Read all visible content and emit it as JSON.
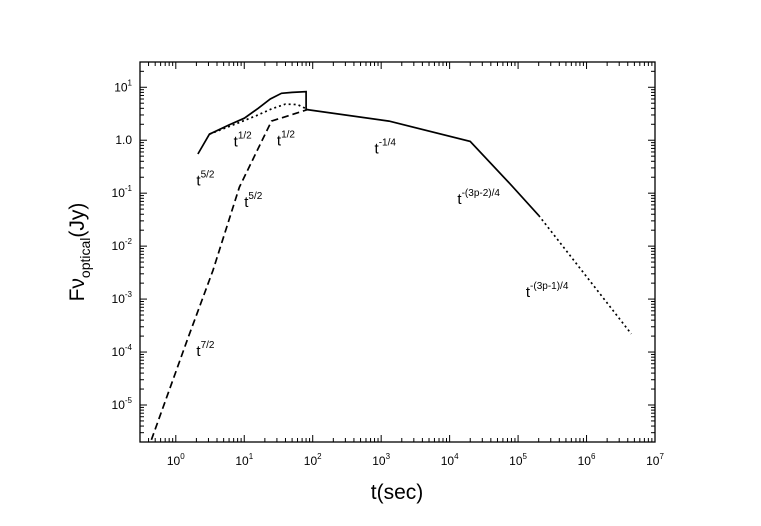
{
  "chart_data": {
    "type": "line",
    "xscale": "log",
    "yscale": "log",
    "xlim": [
      0.3,
      10000000
    ],
    "ylim": [
      2e-06,
      30
    ],
    "xlabel": "t(sec)",
    "ylabel": {
      "main": "Fν",
      "sub": "optical",
      "tail": "(Jy)"
    },
    "x_ticks": [
      {
        "base": "10",
        "exp": "0",
        "value": 1
      },
      {
        "base": "10",
        "exp": "1",
        "value": 10
      },
      {
        "base": "10",
        "exp": "2",
        "value": 100
      },
      {
        "base": "10",
        "exp": "3",
        "value": 1000
      },
      {
        "base": "10",
        "exp": "4",
        "value": 10000
      },
      {
        "base": "10",
        "exp": "5",
        "value": 100000
      },
      {
        "base": "10",
        "exp": "6",
        "value": 1000000
      },
      {
        "base": "10",
        "exp": "7",
        "value": 10000000
      }
    ],
    "y_ticks": [
      {
        "base": "10",
        "exp": "1",
        "value": 10
      },
      {
        "base": "1.0",
        "exp": "",
        "value": 1
      },
      {
        "base": "10",
        "exp": "-1",
        "value": 0.1
      },
      {
        "base": "10",
        "exp": "-2",
        "value": 0.01
      },
      {
        "base": "10",
        "exp": "-3",
        "value": 0.001
      },
      {
        "base": "10",
        "exp": "-4",
        "value": 0.0001
      },
      {
        "base": "10",
        "exp": "-5",
        "value": 1e-05
      }
    ],
    "series": [
      {
        "style": "solid",
        "x": [
          2.1,
          3.1,
          6,
          10,
          16,
          24,
          35,
          50,
          80,
          80,
          1300,
          20000,
          80000,
          200000
        ],
        "y": [
          0.55,
          1.3,
          1.95,
          2.6,
          4,
          6,
          7.7,
          8,
          8.3,
          3.8,
          2.3,
          0.95,
          0.14,
          0.038
        ]
      },
      {
        "style": "dotted",
        "x": [
          3.1,
          8,
          15,
          25,
          40,
          60,
          85
        ],
        "y": [
          1.3,
          2.1,
          2.9,
          3.9,
          4.8,
          4.7,
          3.8
        ]
      },
      {
        "style": "dashed",
        "x": [
          0.44,
          1.5,
          3.5,
          8.5,
          25,
          85
        ],
        "y": [
          2.2e-06,
          0.00018,
          0.0035,
          0.13,
          2.3,
          3.8
        ]
      },
      {
        "style": "dotted",
        "x": [
          200000,
          4500000
        ],
        "y": [
          0.038,
          0.00022
        ]
      }
    ],
    "annotations": [
      {
        "base": "t",
        "exp": "5/2",
        "x": 2.0,
        "y": 0.14
      },
      {
        "base": "t",
        "exp": "1/2",
        "x": 7.0,
        "y": 0.76
      },
      {
        "base": "t",
        "exp": "1/2",
        "x": 30,
        "y": 0.8
      },
      {
        "base": "t",
        "exp": "-1/4",
        "x": 800,
        "y": 0.56
      },
      {
        "base": "t",
        "exp": "5/2",
        "x": 10,
        "y": 0.055
      },
      {
        "base": "t",
        "exp": "-(3p-2)/4",
        "x": 13000,
        "y": 0.063
      },
      {
        "base": "t",
        "exp": "7/2",
        "x": 2.0,
        "y": 8.5e-05
      },
      {
        "base": "t",
        "exp": "-(3p-1)/4",
        "x": 130000,
        "y": 0.0011
      }
    ]
  }
}
